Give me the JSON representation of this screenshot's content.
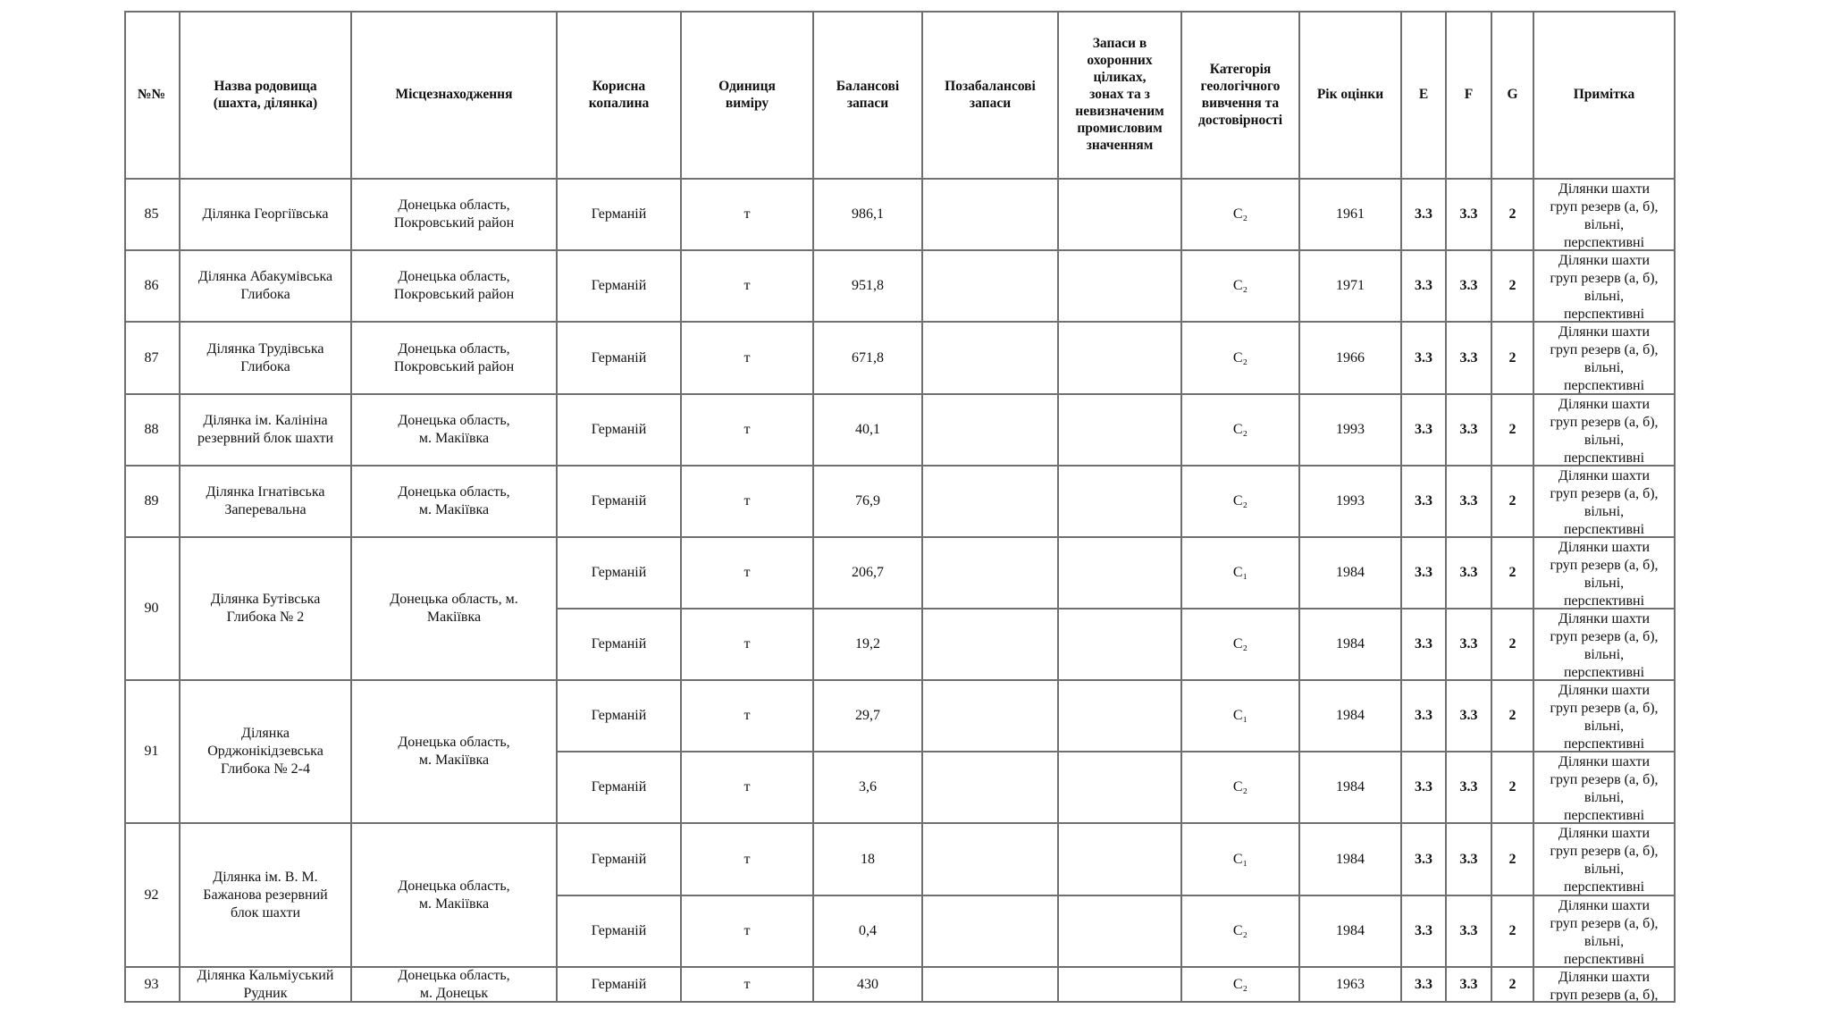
{
  "table": {
    "headers": [
      "№№",
      "Назва родовища\n(шахта, ділянка)",
      "Місцезнаходження",
      "Корисна\nкопалина",
      "Одиниця\nвиміру",
      "Балансові\nзапаси",
      "Позабалансові\nзапаси",
      "Запаси в\nохоронних\nціликах,\nзонах та з\nневизначеним\nпромисловим\nзначенням",
      "Категорія\nгеологічного\nвивчення та\nдостовірності",
      "Рік оцінки",
      "E",
      "F",
      "G",
      "Примітка"
    ],
    "groups": [
      {
        "no": "85",
        "name": "Ділянка Георгіївська",
        "location": "Донецька область,\nПокровський  район",
        "rows": [
          {
            "mineral": "Германій",
            "unit": "т",
            "balance": "986,1",
            "off_balance": "",
            "protected": "",
            "category": "C₂",
            "year": "1961",
            "e": "3.3",
            "f": "3.3",
            "g": "2",
            "note": "Ділянки шахти\nгруп резерв (а, б),\nвільні,\nперспективні"
          }
        ]
      },
      {
        "no": "86",
        "name": "Ділянка Абакумівська\nГлибока",
        "location": "Донецька область,\nПокровський  район",
        "rows": [
          {
            "mineral": "Германій",
            "unit": "т",
            "balance": "951,8",
            "off_balance": "",
            "protected": "",
            "category": "C₂",
            "year": "1971",
            "e": "3.3",
            "f": "3.3",
            "g": "2",
            "note": "Ділянки шахти\nгруп резерв (а, б),\nвільні,\nперспективні"
          }
        ]
      },
      {
        "no": "87",
        "name": "Ділянка Трудівська\nГлибока",
        "location": "Донецька область,\nПокровський  район",
        "rows": [
          {
            "mineral": "Германій",
            "unit": "т",
            "balance": "671,8",
            "off_balance": "",
            "protected": "",
            "category": "C₂",
            "year": "1966",
            "e": "3.3",
            "f": "3.3",
            "g": "2",
            "note": "Ділянки шахти\nгруп резерв (а, б),\nвільні,\nперспективні"
          }
        ]
      },
      {
        "no": "88",
        "name": "Ділянка ім. Калініна\nрезервний блок шахти",
        "location": "Донецька область,\nм. Макіївка",
        "rows": [
          {
            "mineral": "Германій",
            "unit": "т",
            "balance": "40,1",
            "off_balance": "",
            "protected": "",
            "category": "C₂",
            "year": "1993",
            "e": "3.3",
            "f": "3.3",
            "g": "2",
            "note": "Ділянки шахти\nгруп резерв (а, б),\nвільні,\nперспективні"
          }
        ]
      },
      {
        "no": "89",
        "name": "Ділянка Ігнатівська\nЗаперевальна",
        "location": "Донецька область,\nм. Макіївка",
        "rows": [
          {
            "mineral": "Германій",
            "unit": "т",
            "balance": "76,9",
            "off_balance": "",
            "protected": "",
            "category": "C₂",
            "year": "1993",
            "e": "3.3",
            "f": "3.3",
            "g": "2",
            "note": "Ділянки шахти\nгруп резерв (а, б),\nвільні,\nперспективні"
          }
        ]
      },
      {
        "no": "90",
        "name": "Ділянка Бутівська\nГлибока № 2",
        "location": "Донецька область, м.\nМакіївка",
        "rows": [
          {
            "mineral": "Германій",
            "unit": "т",
            "balance": "206,7",
            "off_balance": "",
            "protected": "",
            "category": "C₁",
            "year": "1984",
            "e": "3.3",
            "f": "3.3",
            "g": "2",
            "note": "Ділянки шахти\nгруп резерв (а, б),\nвільні,\nперспективні"
          },
          {
            "mineral": "Германій",
            "unit": "т",
            "balance": "19,2",
            "off_balance": "",
            "protected": "",
            "category": "C₂",
            "year": "1984",
            "e": "3.3",
            "f": "3.3",
            "g": "2",
            "note": "Ділянки шахти\nгруп резерв (а, б),\nвільні,\nперспективні"
          }
        ]
      },
      {
        "no": "91",
        "name": "Ділянка\nОрджонікідзевська\nГлибока № 2-4",
        "location": "Донецька область,\nм. Макіївка",
        "rows": [
          {
            "mineral": "Германій",
            "unit": "т",
            "balance": "29,7",
            "off_balance": "",
            "protected": "",
            "category": "C₁",
            "year": "1984",
            "e": "3.3",
            "f": "3.3",
            "g": "2",
            "note": "Ділянки шахти\nгруп резерв (а, б),\nвільні,\nперспективні"
          },
          {
            "mineral": "Германій",
            "unit": "т",
            "balance": "3,6",
            "off_balance": "",
            "protected": "",
            "category": "C₂",
            "year": "1984",
            "e": "3.3",
            "f": "3.3",
            "g": "2",
            "note": "Ділянки шахти\nгруп резерв (а, б),\nвільні,\nперспективні"
          }
        ]
      },
      {
        "no": "92",
        "name": "Ділянка ім. В. М.\nБажанова резервний\nблок шахти",
        "location": "Донецька область,\nм. Макіївка",
        "rows": [
          {
            "mineral": "Германій",
            "unit": "т",
            "balance": "18",
            "off_balance": "",
            "protected": "",
            "category": "C₁",
            "year": "1984",
            "e": "3.3",
            "f": "3.3",
            "g": "2",
            "note": "Ділянки шахти\nгруп резерв (а, б),\nвільні,\nперспективні"
          },
          {
            "mineral": "Германій",
            "unit": "т",
            "balance": "0,4",
            "off_balance": "",
            "protected": "",
            "category": "C₂",
            "year": "1984",
            "e": "3.3",
            "f": "3.3",
            "g": "2",
            "note": "Ділянки шахти\nгруп резерв (а, б),\nвільні,\nперспективні"
          }
        ]
      },
      {
        "no": "93",
        "name": "Ділянка Кальміуський\nРудник",
        "location": "Донецька область,\nм. Донецьк",
        "rows": [
          {
            "mineral": "Германій",
            "unit": "т",
            "balance": "430",
            "off_balance": "",
            "protected": "",
            "category": "C₂",
            "year": "1963",
            "e": "3.3",
            "f": "3.3",
            "g": "2",
            "note": "Ділянки шахти\nгруп резерв (а, б),\nвільні,\nперспективні"
          }
        ]
      }
    ]
  }
}
